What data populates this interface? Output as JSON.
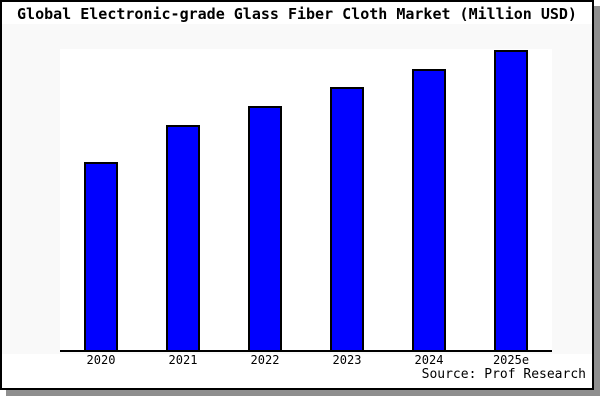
{
  "source_credit": "Source: Prof Research",
  "colors": {
    "bar_fill": "#0000ff",
    "bar_border": "#000000",
    "axis_line": "#000000",
    "plot_bg": "#ffffff",
    "figure_bg": "#f9f9f9",
    "card_border": "#000000",
    "card_shadow": "#8f8f8f",
    "text": "#000000"
  },
  "chart_data": {
    "type": "bar",
    "title": "Global Electronic-grade Glass Fiber Cloth Market (Million USD)",
    "categories": [
      "2020",
      "2021",
      "2022",
      "2023",
      "2024",
      "2025e"
    ],
    "values": [
      188,
      225,
      244,
      263,
      281,
      300
    ],
    "values_note": "no y-axis scale shown in chart; values are proportional units read from bar heights",
    "xlabel": "",
    "ylabel": "",
    "ylim": [
      0,
      301
    ],
    "grid": false,
    "legend": false,
    "y_axis_visible": false,
    "source": "Source: Prof Research"
  }
}
